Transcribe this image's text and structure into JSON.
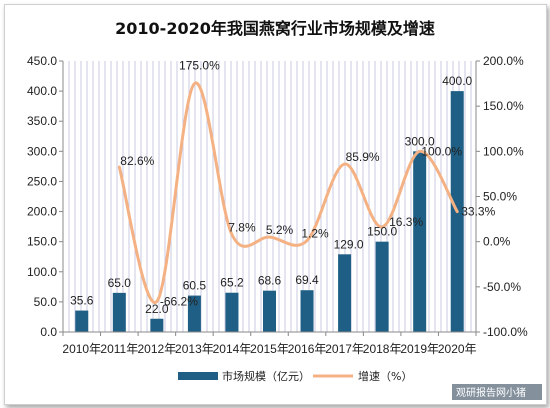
{
  "chart_data": {
    "type": "bar",
    "title": "2010-2020年我国燕窝行业市场规模及增速",
    "categories": [
      "2010年",
      "2011年",
      "2012年",
      "2013年",
      "2014年",
      "2015年",
      "2016年",
      "2017年",
      "2018年",
      "2019年",
      "2020年"
    ],
    "series": [
      {
        "name": "市场规模（亿元）",
        "type": "bar",
        "axis": "left",
        "color": "#1f5f85",
        "values": [
          35.6,
          65.0,
          22.0,
          60.5,
          65.2,
          68.6,
          69.4,
          129.0,
          150.0,
          300.0,
          400.0
        ],
        "labels": [
          "35.6",
          "65.0",
          "22.0",
          "60.5",
          "65.2",
          "68.6",
          "69.4",
          "129.0",
          "150.0",
          "300.0",
          "400.0"
        ]
      },
      {
        "name": "增速（%）",
        "type": "line",
        "smooth": true,
        "axis": "right",
        "color": "#f4b183",
        "values": [
          null,
          82.6,
          -66.2,
          175.0,
          7.8,
          5.2,
          1.2,
          85.9,
          16.3,
          100.0,
          33.3
        ],
        "labels": [
          "",
          "82.6%",
          "-66.2%",
          "175.0%",
          "7.8%",
          "5.2%",
          "1.2%",
          "85.9%",
          "16.3%",
          "100.0%",
          "33.3%"
        ]
      }
    ],
    "y_left": {
      "range": [
        0,
        450
      ],
      "ticks": [
        0,
        50,
        100,
        150,
        200,
        250,
        300,
        350,
        400,
        450
      ],
      "tick_labels": [
        "0.0",
        "50.0",
        "100.0",
        "150.0",
        "200.0",
        "250.0",
        "300.0",
        "350.0",
        "400.0",
        "450.0"
      ]
    },
    "y_right": {
      "range": [
        -100,
        200
      ],
      "ticks": [
        -100,
        -50,
        0,
        50,
        100,
        150,
        200
      ],
      "tick_labels": [
        "-100.0%",
        "-50.0%",
        "0.0%",
        "50.0%",
        "100.0%",
        "150.0%",
        "200.0%"
      ]
    },
    "grid": "vertical-lines",
    "legend_position": "bottom"
  },
  "watermark": "观研报告网小猪",
  "colors": {
    "bar": "#1f5f85",
    "line": "#f4b183",
    "plot_bg": "#ffffff",
    "grid": "#c8cbe3"
  }
}
